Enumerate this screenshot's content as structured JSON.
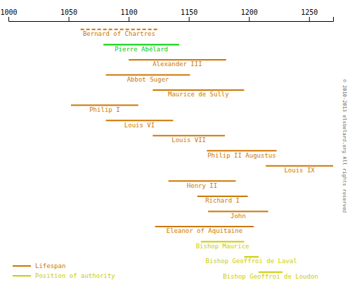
{
  "chart_data": {
    "type": "timeline",
    "categories": [
      "Bernard of Chartres",
      "Pierre Abélard",
      "Alexander III",
      "Abbot Suger",
      "Maurice de Sully",
      "Philip I",
      "Louis VI",
      "Louis VII",
      "Philip II Augustus",
      "Louis IX",
      "Henry II",
      "Richard I",
      "John",
      "Eleanor of Aquitaine",
      "Bishop Maurice",
      "Bishop Geoffroi de Laval",
      "Bishop Geoffroi de Loudon"
    ],
    "series": [
      {
        "name": "Lifespan",
        "color": "#cc7700",
        "line_style": "solid",
        "colors": [
          null,
          "#00cc00",
          "#cc7700",
          "#cc7700",
          "#cc7700",
          "#cc7700",
          "#cc7700",
          "#cc7700",
          "#cc7700",
          "#cc7700",
          "#cc7700",
          "#cc7700",
          "#cc7700",
          "#cc7700",
          null,
          null,
          null
        ],
        "values": [
          null,
          [
            1079,
            1142
          ],
          [
            1100,
            1181
          ],
          [
            1081,
            1151
          ],
          [
            1120,
            1196
          ],
          [
            1052,
            1108
          ],
          [
            1081,
            1137
          ],
          [
            1120,
            1180
          ],
          [
            1165,
            1223
          ],
          [
            1214,
            1270
          ],
          [
            1133,
            1189
          ],
          [
            1157,
            1199
          ],
          [
            1166,
            1216
          ],
          [
            1122,
            1204
          ],
          null,
          null,
          null
        ]
      },
      {
        "name": "Position of authority",
        "color": "#cccc00",
        "line_style": "solid",
        "values": [
          null,
          null,
          null,
          null,
          null,
          null,
          null,
          null,
          null,
          null,
          null,
          null,
          null,
          null,
          [
            1160,
            1196
          ],
          [
            1196,
            1208
          ],
          [
            1208,
            1228
          ]
        ]
      },
      {
        "color": "#cc7700",
        "line_style": "dashed",
        "values": [
          [
            1060,
            1124
          ],
          null,
          null,
          null,
          null,
          null,
          null,
          null,
          null,
          null,
          null,
          null,
          null,
          null,
          null,
          null,
          null
        ]
      }
    ],
    "xlim": [
      1000,
      1270
    ],
    "xticks": [
      1000,
      1050,
      1100,
      1150,
      1200,
      1250
    ],
    "tick_labels": "x",
    "annotations": [
      "© 2010-2013 elsbelard.org All rights reserved"
    ]
  }
}
